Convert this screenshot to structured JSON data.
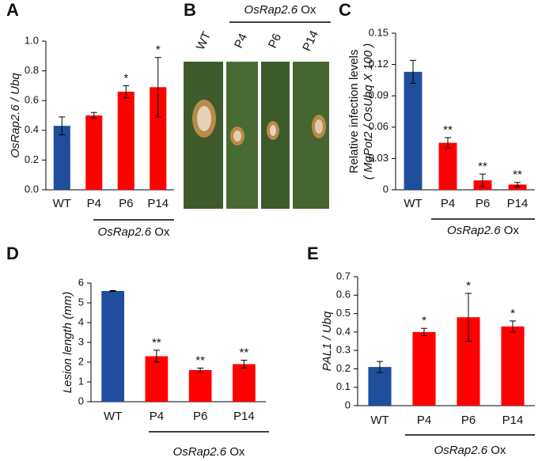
{
  "chart_data": [
    {
      "type": "bar",
      "panel": "A",
      "ylabel": "OsRap2.6 / Ubq",
      "categories": [
        "WT",
        "P4",
        "P6",
        "P14"
      ],
      "values": [
        0.43,
        0.5,
        0.66,
        0.69
      ],
      "errors": [
        0.06,
        0.02,
        0.04,
        0.2
      ],
      "colors": [
        "#1f4e9c",
        "#ff0000",
        "#ff0000",
        "#ff0000"
      ],
      "annotations": [
        null,
        null,
        "*",
        "*"
      ],
      "ylim": [
        0,
        1
      ],
      "yticks": [
        {
          "value": 0,
          "label": "0.0"
        },
        0.2,
        0.4,
        0.6,
        0.8,
        {
          "value": 1,
          "label": "1.0"
        }
      ],
      "group_label": {
        "italic": "OsRap2.6",
        "plain": "Ox"
      }
    },
    {
      "type": "bar",
      "panel": "C",
      "ylabel": [
        "Relative infection levels",
        "( MgPot2 / OsUbq X 100 )"
      ],
      "categories": [
        "WT",
        "P4",
        "P6",
        "P14"
      ],
      "values": [
        0.113,
        0.045,
        0.009,
        0.005
      ],
      "errors": [
        0.011,
        0.005,
        0.006,
        0.002
      ],
      "colors": [
        "#1f4e9c",
        "#ff0000",
        "#ff0000",
        "#ff0000"
      ],
      "annotations": [
        null,
        "**",
        "**",
        "**"
      ],
      "ylim": [
        0,
        0.15
      ],
      "yticks": [
        0,
        0.03,
        0.06,
        0.09,
        0.12,
        0.15
      ],
      "group_label": {
        "italic": "OsRap2.6",
        "plain": "Ox"
      }
    },
    {
      "type": "bar",
      "panel": "D",
      "ylabel": "Lesion length (mm)",
      "categories": [
        "WT",
        "P4",
        "P6",
        "P14"
      ],
      "values": [
        5.6,
        2.3,
        1.6,
        1.9
      ],
      "errors": [
        0.02,
        0.3,
        0.1,
        0.2
      ],
      "colors": [
        "#1f4e9c",
        "#ff0000",
        "#ff0000",
        "#ff0000"
      ],
      "annotations": [
        null,
        "**",
        "**",
        "**"
      ],
      "ylim": [
        0,
        6
      ],
      "yticks": [
        0,
        1,
        2,
        3,
        4,
        5,
        6
      ],
      "group_label": {
        "italic": "OsRap2.6",
        "plain": "Ox"
      }
    },
    {
      "type": "bar",
      "panel": "E",
      "ylabel": "PAL1 / Ubq",
      "categories": [
        "WT",
        "P4",
        "P6",
        "P14"
      ],
      "values": [
        0.21,
        0.4,
        0.48,
        0.43
      ],
      "errors": [
        0.03,
        0.02,
        0.13,
        0.03
      ],
      "colors": [
        "#1f4e9c",
        "#ff0000",
        "#ff0000",
        "#ff0000"
      ],
      "annotations": [
        null,
        "*",
        "*",
        "*"
      ],
      "ylim": [
        0,
        0.7
      ],
      "yticks": [
        0,
        0.1,
        0.2,
        0.3,
        0.4,
        0.5,
        0.6,
        0.7
      ],
      "group_label": {
        "italic": "OsRap2.6",
        "plain": "Ox"
      }
    }
  ],
  "photo_panel": {
    "panel": "B",
    "labels": [
      "WT",
      "P4",
      "P6",
      "P14"
    ],
    "group_label": {
      "italic": "OsRap2.6",
      "plain": "Ox"
    }
  }
}
